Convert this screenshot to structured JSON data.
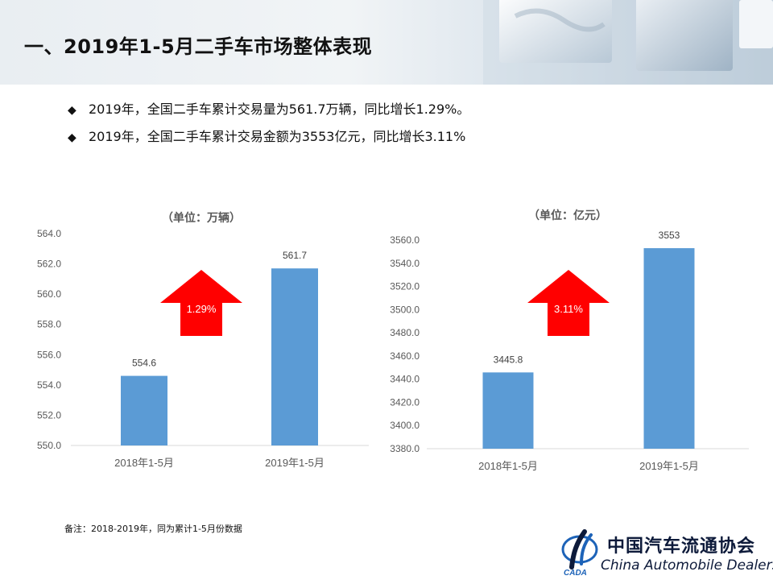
{
  "title": "一、2019年1-5月二手车市场整体表现",
  "bullets": [
    {
      "icon": "diamond-bullet-icon",
      "text": "2019年，全国二手车累计交易量为561.7万辆，同比增长1.29%。"
    },
    {
      "icon": "diamond-bullet-icon",
      "text": "2019年，全国二手车累计交易金额为3553亿元，同比增长3.11%"
    }
  ],
  "colors": {
    "bar": "#5b9bd5",
    "arrow": "#ff0000",
    "axis_text": "#595959"
  },
  "chart_data": [
    {
      "type": "bar",
      "title": "（单位：万辆）",
      "categories": [
        "2018年1-5月",
        "2019年1-5月"
      ],
      "values": [
        554.6,
        561.7
      ],
      "value_labels": [
        "554.6",
        "561.7"
      ],
      "yticks": [
        "550.0",
        "552.0",
        "554.0",
        "556.0",
        "558.0",
        "560.0",
        "562.0",
        "564.0"
      ],
      "ylim": [
        550,
        564
      ],
      "grid": false,
      "annotation": {
        "icon": "up-arrow-icon",
        "text": "1.29%"
      }
    },
    {
      "type": "bar",
      "title": "（单位：亿元）",
      "categories": [
        "2018年1-5月",
        "2019年1-5月"
      ],
      "values": [
        3445.8,
        3553
      ],
      "value_labels": [
        "3445.8",
        "3553"
      ],
      "yticks": [
        "3380.0",
        "3400.0",
        "3420.0",
        "3440.0",
        "3460.0",
        "3480.0",
        "3500.0",
        "3520.0",
        "3540.0",
        "3560.0"
      ],
      "ylim": [
        3380,
        3560
      ],
      "grid": false,
      "annotation": {
        "icon": "up-arrow-icon",
        "text": "3.11%"
      }
    }
  ],
  "footnote": "备注：2018-2019年，同为累计1-5月份数据",
  "logo": {
    "icon": "cada-logo-icon",
    "name_cn": "中国汽车流通协会",
    "name_en": "China Automobile Dealers",
    "mark_text": "CADA"
  }
}
